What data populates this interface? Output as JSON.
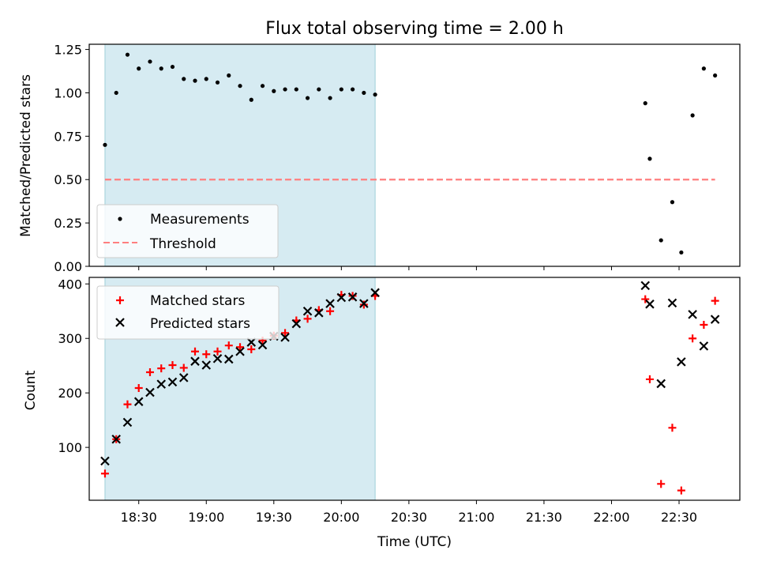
{
  "chart_data": [
    {
      "type": "scatter",
      "title": "Flux total observing time = 2.00 h",
      "ylabel": "Matched/Predicted stars",
      "xlim": [
        "18:08",
        "22:57"
      ],
      "ylim": [
        0,
        1.28
      ],
      "yticks": [
        "0.00",
        "0.25",
        "0.50",
        "0.75",
        "1.00",
        "1.25"
      ],
      "shaded_interval": [
        "18:15",
        "20:15"
      ],
      "legend_position": "lower-left",
      "series": [
        {
          "name": "Measurements",
          "marker": "dot",
          "color": "#000000",
          "x": [
            "18:15",
            "18:20",
            "18:25",
            "18:30",
            "18:35",
            "18:40",
            "18:45",
            "18:50",
            "18:55",
            "19:00",
            "19:05",
            "19:10",
            "19:15",
            "19:20",
            "19:25",
            "19:30",
            "19:35",
            "19:40",
            "19:45",
            "19:50",
            "19:55",
            "20:00",
            "20:05",
            "20:10",
            "20:15",
            "22:15",
            "22:17",
            "22:22",
            "22:27",
            "22:31",
            "22:36",
            "22:41",
            "22:46"
          ],
          "y": [
            0.7,
            1.0,
            1.22,
            1.14,
            1.18,
            1.14,
            1.15,
            1.08,
            1.07,
            1.08,
            1.06,
            1.1,
            1.04,
            0.96,
            1.04,
            1.01,
            1.02,
            1.02,
            0.97,
            1.02,
            0.97,
            1.02,
            1.02,
            1.0,
            0.99,
            0.94,
            0.62,
            0.15,
            0.37,
            0.08,
            0.87,
            1.14,
            1.1
          ]
        },
        {
          "name": "Threshold",
          "marker": "dashed-line",
          "color": "#ff7f7f",
          "x": [
            "18:15",
            "22:46"
          ],
          "y": [
            0.5,
            0.5
          ]
        }
      ]
    },
    {
      "type": "scatter",
      "xlabel": "Time (UTC)",
      "ylabel": "Count",
      "xlim": [
        "18:08",
        "22:57"
      ],
      "ylim": [
        3,
        412
      ],
      "yticks": [
        "100",
        "200",
        "300",
        "400"
      ],
      "xticks": [
        "18:30",
        "19:00",
        "19:30",
        "20:00",
        "20:30",
        "21:00",
        "21:30",
        "22:00",
        "22:30"
      ],
      "shaded_interval": [
        "18:15",
        "20:15"
      ],
      "legend_position": "upper-left",
      "series": [
        {
          "name": "Matched stars",
          "marker": "plus",
          "color": "#ff0000",
          "x": [
            "18:15",
            "18:20",
            "18:25",
            "18:30",
            "18:35",
            "18:40",
            "18:45",
            "18:50",
            "18:55",
            "19:00",
            "19:05",
            "19:10",
            "19:15",
            "19:20",
            "19:25",
            "19:30",
            "19:35",
            "19:40",
            "19:45",
            "19:50",
            "19:55",
            "20:00",
            "20:05",
            "20:10",
            "20:15",
            "22:15",
            "22:17",
            "22:22",
            "22:27",
            "22:31",
            "22:36",
            "22:41",
            "22:46"
          ],
          "y": [
            52,
            115,
            179,
            209,
            238,
            245,
            251,
            246,
            276,
            271,
            276,
            287,
            284,
            280,
            296,
            305,
            310,
            333,
            336,
            352,
            350,
            380,
            378,
            362,
            378,
            372,
            225,
            33,
            136,
            21,
            300,
            325,
            369
          ]
        },
        {
          "name": "Predicted stars",
          "marker": "x",
          "color": "#000000",
          "x": [
            "18:15",
            "18:20",
            "18:25",
            "18:30",
            "18:35",
            "18:40",
            "18:45",
            "18:50",
            "18:55",
            "19:00",
            "19:05",
            "19:10",
            "19:15",
            "19:20",
            "19:25",
            "19:30",
            "19:35",
            "19:40",
            "19:45",
            "19:50",
            "19:55",
            "20:00",
            "20:05",
            "20:10",
            "20:15",
            "22:15",
            "22:17",
            "22:22",
            "22:27",
            "22:31",
            "22:36",
            "22:41",
            "22:46"
          ],
          "y": [
            75,
            115,
            146,
            184,
            201,
            216,
            220,
            228,
            258,
            251,
            263,
            262,
            276,
            293,
            288,
            304,
            302,
            327,
            350,
            347,
            364,
            375,
            376,
            364,
            384,
            397,
            363,
            217,
            365,
            257,
            344,
            286,
            335
          ]
        }
      ]
    }
  ]
}
